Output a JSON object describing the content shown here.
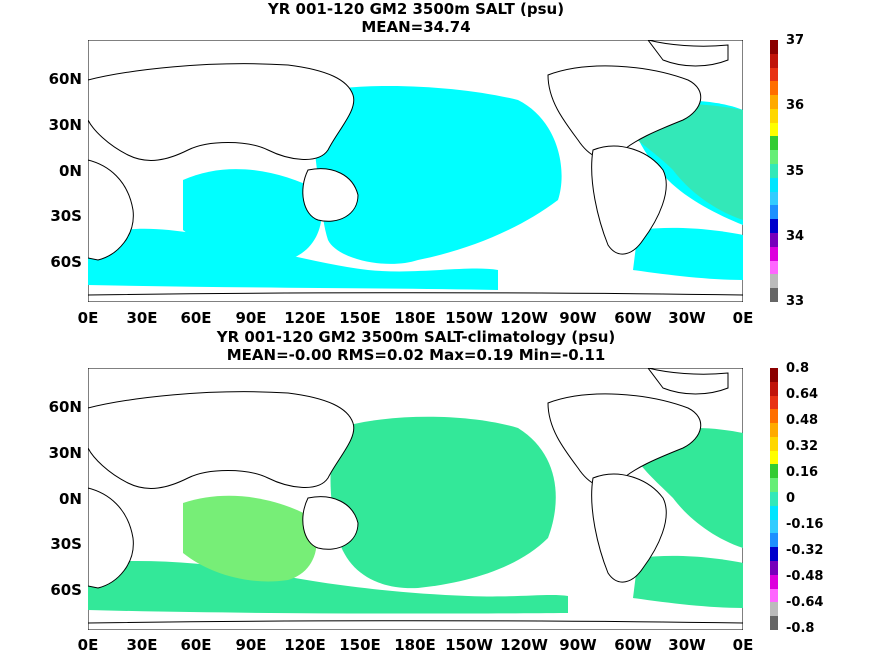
{
  "panels": [
    {
      "title_line1": "YR 001-120 GM2 3500m SALT (psu)",
      "title_line2": "MEAN=34.74",
      "lat_labels": [
        "60N",
        "30N",
        "0N",
        "30S",
        "60S"
      ],
      "lon_labels": [
        "0E",
        "30E",
        "60E",
        "90E",
        "120E",
        "150E",
        "180E",
        "150W",
        "120W",
        "90W",
        "60W",
        "30W",
        "0E"
      ],
      "colorbar_labels": [
        "37",
        "36",
        "35",
        "34",
        "33"
      ],
      "colorbar_colors": [
        "#8b0000",
        "#c0140a",
        "#e83214",
        "#ff6e00",
        "#ffaa00",
        "#ffd700",
        "#ffff00",
        "#33cc33",
        "#66ee77",
        "#33e8b8",
        "#00e5ff",
        "#33ccff",
        "#1e90ff",
        "#0000cc",
        "#7700bb",
        "#dd00dd",
        "#ff66ff",
        "#bbbbbb",
        "#666666"
      ],
      "dominant_fill": "#00ffff"
    },
    {
      "title_line1": "YR 001-120 GM2 3500m SALT-climatology (psu)",
      "title_line2": "MEAN=-0.00   RMS=0.02   Max=0.19   Min=-0.11",
      "lat_labels": [
        "60N",
        "30N",
        "0N",
        "30S",
        "60S"
      ],
      "lon_labels": [
        "0E",
        "30E",
        "60E",
        "90E",
        "120E",
        "150E",
        "180E",
        "150W",
        "120W",
        "90W",
        "60W",
        "30W",
        "0E"
      ],
      "colorbar_labels": [
        "0.8",
        "0.64",
        "0.48",
        "0.32",
        "0.16",
        "0",
        "-0.16",
        "-0.32",
        "-0.48",
        "-0.64",
        "-0.8"
      ],
      "colorbar_colors": [
        "#8b0000",
        "#c0140a",
        "#e83214",
        "#ff6e00",
        "#ffaa00",
        "#ffd700",
        "#ffff00",
        "#33cc33",
        "#66ee77",
        "#33e8b8",
        "#00e5ff",
        "#33ccff",
        "#1e90ff",
        "#0000cc",
        "#7700bb",
        "#dd00dd",
        "#ff66ff",
        "#bbbbbb",
        "#666666"
      ],
      "dominant_fill": "#33e899"
    }
  ]
}
